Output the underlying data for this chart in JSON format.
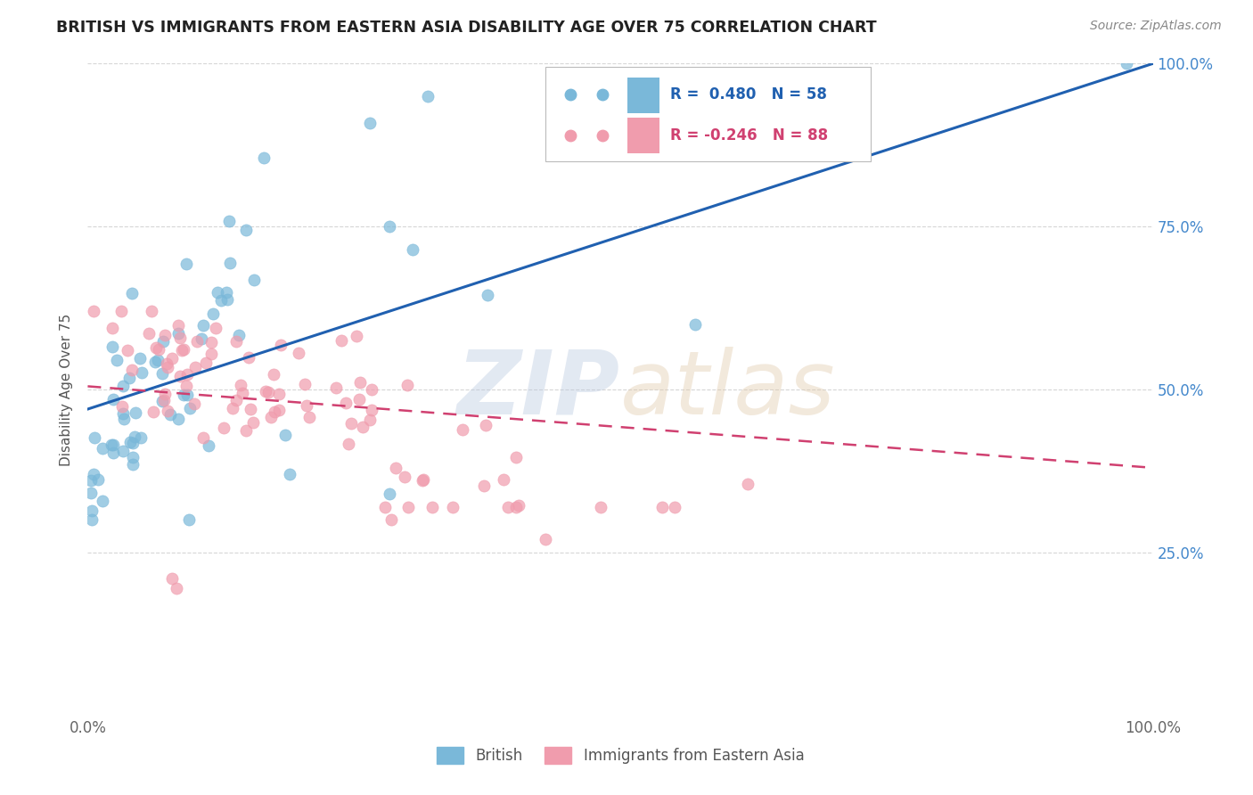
{
  "title": "BRITISH VS IMMIGRANTS FROM EASTERN ASIA DISABILITY AGE OVER 75 CORRELATION CHART",
  "source": "Source: ZipAtlas.com",
  "ylabel": "Disability Age Over 75",
  "xlim": [
    0,
    1.0
  ],
  "ylim": [
    0,
    1.0
  ],
  "british_R": 0.48,
  "british_N": 58,
  "eastern_asia_R": -0.246,
  "eastern_asia_N": 88,
  "british_color": "#7ab8d9",
  "eastern_asia_color": "#f09cad",
  "british_line_color": "#2060b0",
  "eastern_asia_line_color": "#d04070",
  "grid_color": "#cccccc",
  "background_color": "#ffffff",
  "title_color": "#222222",
  "right_axis_color": "#4488cc",
  "legend_R_color": "#2060b0",
  "legend_R2_color": "#d04070",
  "brit_line_x0": 0.0,
  "brit_line_y0": 0.47,
  "brit_line_x1": 1.0,
  "brit_line_y1": 1.0,
  "east_line_x0": 0.0,
  "east_line_y0": 0.505,
  "east_line_x1": 1.0,
  "east_line_y1": 0.38
}
